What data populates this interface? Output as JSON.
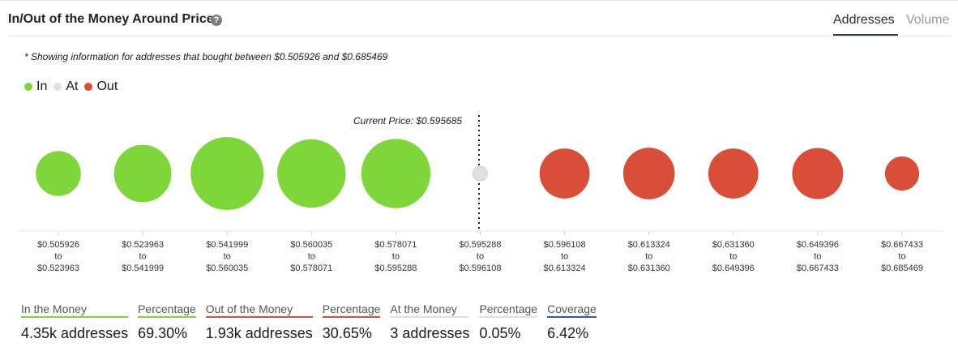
{
  "header": {
    "title": "In/Out of the Money Around Price",
    "help_icon": "?",
    "tabs": [
      "Addresses",
      "Volume"
    ],
    "active_tab": "Addresses"
  },
  "note": "* Showing information for addresses that bought between $0.505926 and $0.685469",
  "legend": [
    {
      "label": "In",
      "color": "#7ed63b"
    },
    {
      "label": "At",
      "color": "#e0e0e0"
    },
    {
      "label": "Out",
      "color": "#d84e38"
    }
  ],
  "current_price_label": "Current Price: $0.595685",
  "chart_data": {
    "type": "bubble",
    "title": "In/Out of the Money Around Price",
    "current_price": 0.595685,
    "categories": [
      {
        "from": "$0.505926",
        "to_word": "to",
        "to": "$0.523963",
        "status": "In"
      },
      {
        "from": "$0.523963",
        "to_word": "to",
        "to": "$0.541999",
        "status": "In"
      },
      {
        "from": "$0.541999",
        "to_word": "to",
        "to": "$0.560035",
        "status": "In"
      },
      {
        "from": "$0.560035",
        "to_word": "to",
        "to": "$0.578071",
        "status": "In"
      },
      {
        "from": "$0.578071",
        "to_word": "to",
        "to": "$0.595288",
        "status": "In"
      },
      {
        "from": "$0.595288",
        "to_word": "to",
        "to": "$0.596108",
        "status": "At"
      },
      {
        "from": "$0.596108",
        "to_word": "to",
        "to": "$0.613324",
        "status": "Out"
      },
      {
        "from": "$0.613324",
        "to_word": "to",
        "to": "$0.631360",
        "status": "Out"
      },
      {
        "from": "$0.631360",
        "to_word": "to",
        "to": "$0.649396",
        "status": "Out"
      },
      {
        "from": "$0.649396",
        "to_word": "to",
        "to": "$0.667433",
        "status": "Out"
      },
      {
        "from": "$0.667433",
        "to_word": "to",
        "to": "$0.685469",
        "status": "Out"
      }
    ],
    "relative_size": [
      0.38,
      0.62,
      1.0,
      0.88,
      0.9,
      0.04,
      0.47,
      0.5,
      0.47,
      0.49,
      0.22
    ],
    "colors": {
      "In": "#7ed63b",
      "At": "#e0e0e0",
      "Out": "#d84e38"
    }
  },
  "stats": [
    {
      "label": "In the Money",
      "value": "4.35k addresses",
      "color": "#7ed63b"
    },
    {
      "label": "Percentage",
      "value": "69.30%",
      "color": "#7ed63b"
    },
    {
      "label": "Out of the Money",
      "value": "1.93k addresses",
      "color": "#d84e38"
    },
    {
      "label": "Percentage",
      "value": "30.65%",
      "color": "#d84e38"
    },
    {
      "label": "At the Money",
      "value": "3 addresses",
      "color": "#e0e0e0"
    },
    {
      "label": "Percentage",
      "value": "0.05%",
      "color": "#e0e0e0"
    },
    {
      "label": "Coverage",
      "value": "6.42%",
      "color": "#2f5aa8"
    }
  ]
}
